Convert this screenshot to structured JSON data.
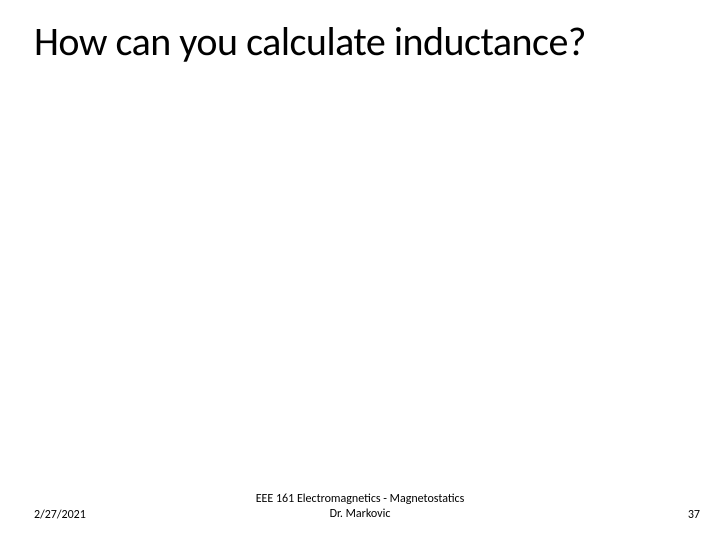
{
  "slide": {
    "title": "How can you calculate inductance?",
    "title_fontsize": 40,
    "title_color": "#000000",
    "background_color": "#ffffff"
  },
  "footer": {
    "date": "2/27/2021",
    "center_line1": "EEE 161 Electromagnetics - Magnetostatics",
    "center_line2": "Dr. Markovic",
    "page_number": "37",
    "font_size": 12,
    "text_color": "#000000"
  }
}
